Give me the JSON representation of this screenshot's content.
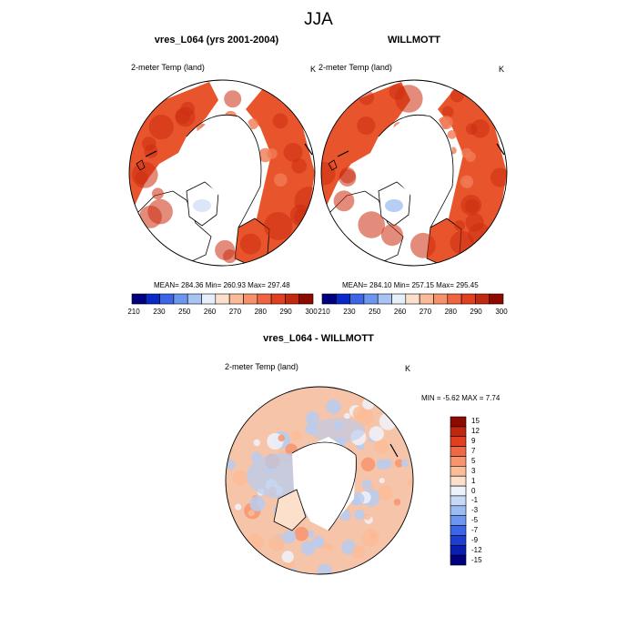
{
  "page": {
    "title": "JJA"
  },
  "palette": {
    "abs_colors": [
      "#00007f",
      "#0a28c8",
      "#3c66e6",
      "#6c96f0",
      "#a9c3f5",
      "#e6f0fb",
      "#fde0cc",
      "#fbbb98",
      "#f7916a",
      "#f06440",
      "#e0401f",
      "#c22a0f",
      "#8c0a00"
    ],
    "diff_colors": [
      "#8c0a00",
      "#c0280e",
      "#e0401f",
      "#ef6a44",
      "#f7956e",
      "#fbbc98",
      "#fde0cc",
      "#eef3fb",
      "#c6d9f5",
      "#9bbcf0",
      "#6c96f0",
      "#3c66e6",
      "#1c3fd2",
      "#0a1eb0",
      "#00007f"
    ],
    "land_base": "#e8542c",
    "land_hot": "#cc2e10",
    "land_mild": "#f07a55",
    "ice": "#ffffff",
    "diff_land": "#f6c4a8",
    "diff_cool": "#b8cdf0"
  },
  "chart_data": [
    {
      "type": "heatmap",
      "panel": "model",
      "title": "vres_L064 (yrs 2001-2004)",
      "field_label": "2-meter Temp (land)",
      "units": "K",
      "projection": "north polar stereographic",
      "stats": {
        "mean": "284.36",
        "min": "260.93",
        "max": "297.48"
      },
      "stats_text": "MEAN= 284.36  Min= 260.93  Max= 297.48",
      "colorbar": {
        "orientation": "horizontal",
        "labels": [
          "210",
          "230",
          "250",
          "260",
          "270",
          "280",
          "290",
          "300"
        ]
      }
    },
    {
      "type": "heatmap",
      "panel": "observations",
      "title": "WILLMOTT",
      "field_label": "2-meter Temp (land)",
      "units": "K",
      "projection": "north polar stereographic",
      "stats": {
        "mean": "284.10",
        "min": "257.15",
        "max": "295.45"
      },
      "stats_text": "MEAN= 284.10  Min= 257.15  Max= 295.45",
      "colorbar": {
        "orientation": "horizontal",
        "labels": [
          "210",
          "230",
          "250",
          "260",
          "270",
          "280",
          "290",
          "300"
        ]
      }
    },
    {
      "type": "heatmap",
      "panel": "difference",
      "title": "vres_L064 - WILLMOTT",
      "field_label": "2-meter Temp (land)",
      "units": "K",
      "projection": "north polar stereographic",
      "stats": {
        "min": "-5.62",
        "max": "7.74"
      },
      "stats_text": "MIN =  -5.62 MAX =   7.74",
      "colorbar": {
        "orientation": "vertical",
        "labels": [
          "15",
          "12",
          "9",
          "7",
          "5",
          "3",
          "1",
          "0",
          "-1",
          "-3",
          "-5",
          "-7",
          "-9",
          "-12",
          "-15"
        ]
      }
    }
  ]
}
